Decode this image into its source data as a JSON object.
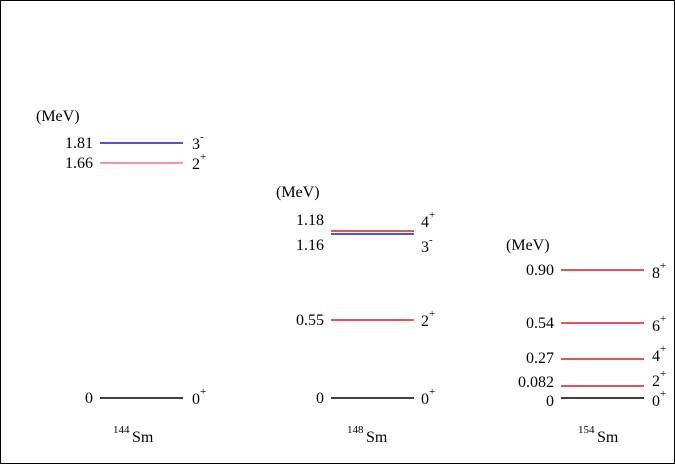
{
  "unit_label": "(MeV)",
  "colors": {
    "black": "#000000",
    "blue": "#1a1acc",
    "red": "#e01818",
    "pink": "#f07a7a"
  },
  "panels": [
    {
      "nucleus": {
        "mass": "144",
        "symbol": "Sm"
      },
      "levels": [
        {
          "energy": "1.81",
          "spin": "3",
          "parity": "-",
          "color": "blue"
        },
        {
          "energy": "1.66",
          "spin": "2",
          "parity": "+",
          "color": "pink"
        },
        {
          "energy": "0",
          "spin": "0",
          "parity": "+",
          "color": "black"
        }
      ]
    },
    {
      "nucleus": {
        "mass": "148",
        "symbol": "Sm"
      },
      "levels": [
        {
          "energy": "1.18",
          "spin": "4",
          "parity": "+",
          "color": "red"
        },
        {
          "energy": "1.16",
          "spin": "3",
          "parity": "-",
          "color": "blue"
        },
        {
          "energy": "0.55",
          "spin": "2",
          "parity": "+",
          "color": "red"
        },
        {
          "energy": "0",
          "spin": "0",
          "parity": "+",
          "color": "black"
        }
      ]
    },
    {
      "nucleus": {
        "mass": "154",
        "symbol": "Sm"
      },
      "levels": [
        {
          "energy": "0.90",
          "spin": "8",
          "parity": "+",
          "color": "red"
        },
        {
          "energy": "0.54",
          "spin": "6",
          "parity": "+",
          "color": "red"
        },
        {
          "energy": "0.27",
          "spin": "4",
          "parity": "+",
          "color": "red"
        },
        {
          "energy": "0.082",
          "spin": "2",
          "parity": "+",
          "color": "red"
        },
        {
          "energy": "0",
          "spin": "0",
          "parity": "+",
          "color": "black"
        }
      ]
    }
  ]
}
